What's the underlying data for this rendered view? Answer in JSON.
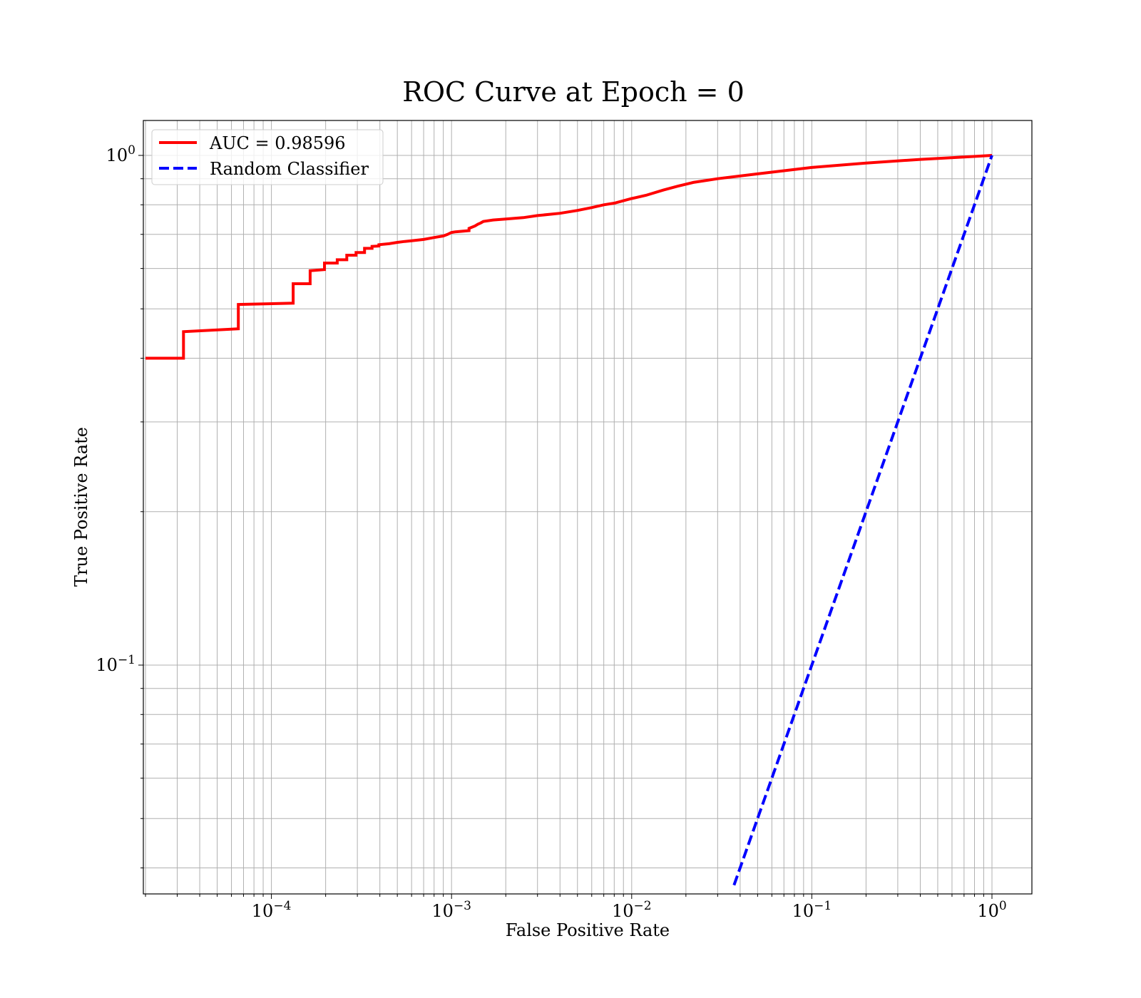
{
  "chart_data": {
    "type": "line",
    "title": "ROC Curve at Epoch = 0",
    "xlabel": "False Positive Rate",
    "ylabel": "True Positive Rate",
    "xscale": "log",
    "yscale": "log",
    "xlim": [
      2e-05,
      1.6
    ],
    "ylim": [
      0.037,
      1.17
    ],
    "grid": true,
    "grid_which": "both",
    "legend_location": "top-left",
    "x_ticks": [
      {
        "value": 0.0001,
        "base": "10",
        "exp": "−4"
      },
      {
        "value": 0.001,
        "base": "10",
        "exp": "−3"
      },
      {
        "value": 0.01,
        "base": "10",
        "exp": "−2"
      },
      {
        "value": 0.1,
        "base": "10",
        "exp": "−1"
      },
      {
        "value": 1,
        "base": "10",
        "exp": "0"
      }
    ],
    "y_ticks": [
      {
        "value": 0.1,
        "base": "10",
        "exp": "−1"
      },
      {
        "value": 1,
        "base": "10",
        "exp": "0"
      }
    ],
    "series": [
      {
        "name": "AUC = 0.98596",
        "color": "#ff0000",
        "style": "solid",
        "x": [
          2e-05,
          3.25e-05,
          3.25e-05,
          6.55e-05,
          6.55e-05,
          0.000132,
          0.000132,
          0.000164,
          0.000164,
          0.000197,
          0.000197,
          0.000232,
          0.000232,
          0.000262,
          0.000262,
          0.000295,
          0.000295,
          0.000329,
          0.000329,
          0.000362,
          0.000362,
          0.000395,
          0.000395,
          0.00045,
          0.0005,
          0.00055,
          0.0006,
          0.0007,
          0.0008,
          0.0009,
          0.00095,
          0.001,
          0.00105,
          0.00125,
          0.00125,
          0.00135,
          0.0014,
          0.00145,
          0.0015,
          0.0017,
          0.002,
          0.0025,
          0.003,
          0.004,
          0.005,
          0.006,
          0.007,
          0.008,
          0.01,
          0.012,
          0.015,
          0.018,
          0.022,
          0.03,
          0.05,
          0.1,
          0.2,
          0.4,
          0.7,
          1.0
        ],
        "y": [
          0.4,
          0.4,
          0.451,
          0.457,
          0.51,
          0.513,
          0.56,
          0.56,
          0.594,
          0.597,
          0.615,
          0.615,
          0.624,
          0.624,
          0.637,
          0.637,
          0.645,
          0.645,
          0.657,
          0.657,
          0.663,
          0.664,
          0.668,
          0.671,
          0.675,
          0.678,
          0.68,
          0.684,
          0.69,
          0.695,
          0.7,
          0.706,
          0.708,
          0.712,
          0.719,
          0.727,
          0.733,
          0.737,
          0.742,
          0.747,
          0.75,
          0.755,
          0.762,
          0.77,
          0.78,
          0.79,
          0.8,
          0.806,
          0.823,
          0.835,
          0.855,
          0.87,
          0.885,
          0.9,
          0.92,
          0.947,
          0.966,
          0.982,
          0.993,
          1.0
        ]
      },
      {
        "name": "Random Classifier",
        "color": "#0000ff",
        "style": "dashed",
        "x": [
          0.037,
          1.0
        ],
        "y": [
          0.037,
          1.0
        ]
      }
    ]
  }
}
